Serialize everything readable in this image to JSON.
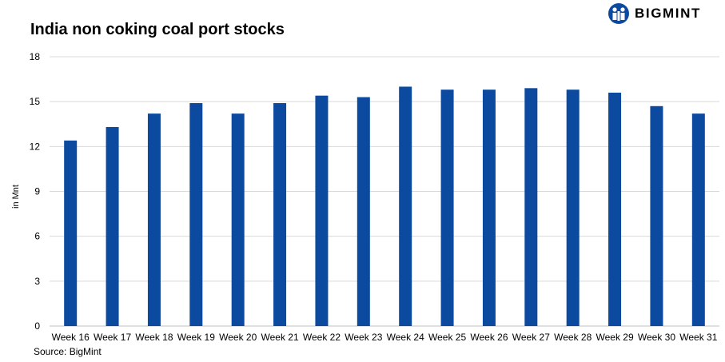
{
  "logo": {
    "text": "BIGMINT",
    "color": "#0b4a9f",
    "icon": "bigmint-people-icon"
  },
  "source": "Source: BigMint",
  "chart_data": {
    "type": "bar",
    "title": "India non coking coal port stocks",
    "xlabel": "",
    "ylabel": "in Mnt",
    "ylim": [
      0,
      18
    ],
    "yticks": [
      0,
      3,
      6,
      9,
      12,
      15,
      18
    ],
    "grid": true,
    "legend": "none",
    "bar_color": "#0b4a9f",
    "categories": [
      "Week 16",
      "Week 17",
      "Week 18",
      "Week 19",
      "Week 20",
      "Week 21",
      "Week 22",
      "Week 23",
      "Week 24",
      "Week 25",
      "Week 26",
      "Week 27",
      "Week 28",
      "Week 29",
      "Week 30",
      "Week 31"
    ],
    "values": [
      12.4,
      13.3,
      14.2,
      14.9,
      14.2,
      14.9,
      15.4,
      15.3,
      16.0,
      15.8,
      15.8,
      15.9,
      15.8,
      15.6,
      14.7,
      14.2
    ]
  }
}
